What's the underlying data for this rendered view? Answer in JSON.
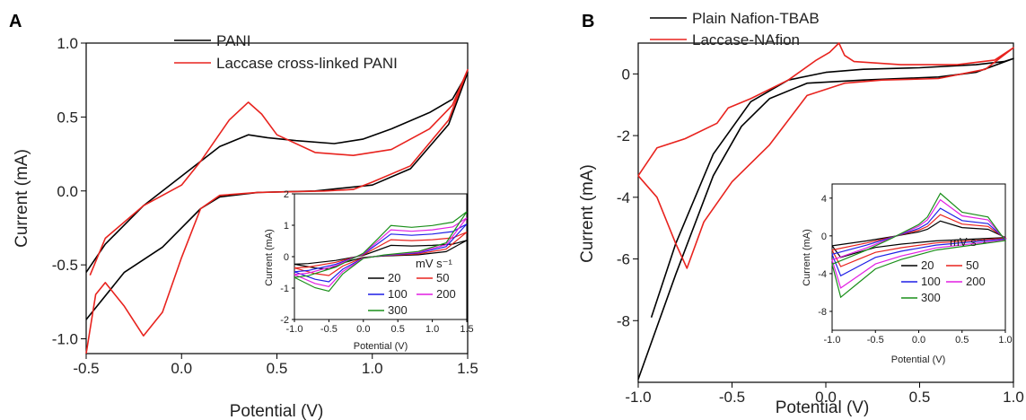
{
  "chart_data": [
    {
      "panel": "A",
      "type": "line",
      "xlabel": "Potential (V)",
      "ylabel": "Current (mA)",
      "xlim": [
        -0.5,
        1.5
      ],
      "ylim": [
        -1.1,
        1.0
      ],
      "x_ticks": [
        "-0.5",
        "0.0",
        "0.5",
        "1.0",
        "1.5"
      ],
      "y_ticks": [
        "1.0",
        "0.5",
        "0.0",
        "-0.5",
        "-1.0"
      ],
      "x_tick_values": [
        -0.5,
        0.0,
        0.5,
        1.0,
        1.5
      ],
      "y_tick_values": [
        1.0,
        0.5,
        0.0,
        -0.5,
        -1.0
      ],
      "legend_position": "top-center",
      "series": [
        {
          "name": "PANI",
          "color": "#000000",
          "points": [
            [
              -0.5,
              -0.87
            ],
            [
              -0.3,
              -0.55
            ],
            [
              -0.1,
              -0.38
            ],
            [
              0.1,
              -0.12
            ],
            [
              0.2,
              -0.04
            ],
            [
              0.4,
              -0.01
            ],
            [
              0.7,
              0.0
            ],
            [
              1.0,
              0.04
            ],
            [
              1.2,
              0.15
            ],
            [
              1.4,
              0.45
            ],
            [
              1.5,
              0.8
            ],
            [
              1.42,
              0.62
            ],
            [
              1.3,
              0.53
            ],
            [
              1.1,
              0.42
            ],
            [
              0.95,
              0.35
            ],
            [
              0.8,
              0.32
            ],
            [
              0.6,
              0.34
            ],
            [
              0.45,
              0.36
            ],
            [
              0.35,
              0.38
            ],
            [
              0.2,
              0.3
            ],
            [
              0.0,
              0.1
            ],
            [
              -0.2,
              -0.1
            ],
            [
              -0.4,
              -0.36
            ],
            [
              -0.5,
              -0.55
            ]
          ]
        },
        {
          "name": "Laccase cross-linked PANI",
          "color": "#e8231e",
          "points": [
            [
              -0.5,
              -1.1
            ],
            [
              -0.45,
              -0.7
            ],
            [
              -0.4,
              -0.62
            ],
            [
              -0.3,
              -0.78
            ],
            [
              -0.2,
              -0.98
            ],
            [
              -0.1,
              -0.82
            ],
            [
              0.0,
              -0.45
            ],
            [
              0.1,
              -0.12
            ],
            [
              0.2,
              -0.03
            ],
            [
              0.4,
              -0.01
            ],
            [
              0.75,
              0.0
            ],
            [
              0.9,
              0.01
            ],
            [
              1.0,
              0.06
            ],
            [
              1.2,
              0.17
            ],
            [
              1.4,
              0.48
            ],
            [
              1.5,
              0.82
            ],
            [
              1.42,
              0.58
            ],
            [
              1.3,
              0.42
            ],
            [
              1.1,
              0.28
            ],
            [
              0.9,
              0.24
            ],
            [
              0.7,
              0.26
            ],
            [
              0.5,
              0.38
            ],
            [
              0.42,
              0.52
            ],
            [
              0.35,
              0.6
            ],
            [
              0.25,
              0.48
            ],
            [
              0.1,
              0.2
            ],
            [
              0.0,
              0.04
            ],
            [
              -0.2,
              -0.1
            ],
            [
              -0.4,
              -0.32
            ],
            [
              -0.48,
              -0.57
            ]
          ]
        }
      ],
      "inset": {
        "xlabel": "Potential (V)",
        "ylabel": "Current (mA)",
        "xlim": [
          -1.0,
          1.5
        ],
        "ylim": [
          -2.0,
          2.0
        ],
        "x_ticks": [
          "-1.0",
          "-0.5",
          "0.0",
          "0.5",
          "1.0",
          "1.5"
        ],
        "y_ticks": [
          "2",
          "1",
          "0",
          "-1",
          "-2"
        ],
        "x_tick_values": [
          -1.0,
          -0.5,
          0.0,
          0.5,
          1.0,
          1.5
        ],
        "y_tick_values": [
          2,
          1,
          0,
          -1,
          -2
        ],
        "legend_title": "mV s⁻¹",
        "series": [
          {
            "name": "20",
            "color": "#000000",
            "scale": 0.4
          },
          {
            "name": "50",
            "color": "#e8231e",
            "scale": 0.6
          },
          {
            "name": "100",
            "color": "#1f1fe6",
            "scale": 0.8
          },
          {
            "name": "200",
            "color": "#e21fe2",
            "scale": 0.95
          },
          {
            "name": "300",
            "color": "#1a8f1a",
            "scale": 1.1
          }
        ]
      }
    },
    {
      "panel": "B",
      "type": "line",
      "xlabel": "Potential (V)",
      "ylabel": "Current (mA)",
      "xlim": [
        -1.0,
        1.0
      ],
      "ylim": [
        -10.0,
        1.0
      ],
      "x_ticks": [
        "-1.0",
        "-0.5",
        "0.0",
        "0.5",
        "1.0"
      ],
      "y_ticks": [
        "0",
        "-2",
        "-4",
        "-6",
        "-8"
      ],
      "x_tick_values": [
        -1.0,
        -0.5,
        0.0,
        0.5,
        1.0
      ],
      "y_tick_values": [
        0,
        -2,
        -4,
        -6,
        -8
      ],
      "legend_position": "top-left",
      "series": [
        {
          "name": "Plain Nafion-TBAB",
          "color": "#000000",
          "points": [
            [
              -1.0,
              -9.9
            ],
            [
              -0.8,
              -6.5
            ],
            [
              -0.6,
              -3.3
            ],
            [
              -0.45,
              -1.7
            ],
            [
              -0.3,
              -0.8
            ],
            [
              -0.1,
              -0.3
            ],
            [
              0.2,
              -0.2
            ],
            [
              0.6,
              -0.1
            ],
            [
              0.8,
              0.05
            ],
            [
              1.0,
              0.5
            ],
            [
              0.95,
              0.4
            ],
            [
              0.8,
              0.3
            ],
            [
              0.5,
              0.2
            ],
            [
              0.2,
              0.15
            ],
            [
              0.0,
              0.05
            ],
            [
              -0.2,
              -0.2
            ],
            [
              -0.4,
              -0.9
            ],
            [
              -0.6,
              -2.6
            ],
            [
              -0.8,
              -5.5
            ],
            [
              -0.93,
              -7.9
            ]
          ]
        },
        {
          "name": "Laccase-NAfion",
          "color": "#e8231e",
          "points": [
            [
              -1.0,
              -3.3
            ],
            [
              -0.9,
              -4.0
            ],
            [
              -0.8,
              -5.5
            ],
            [
              -0.74,
              -6.3
            ],
            [
              -0.65,
              -4.8
            ],
            [
              -0.5,
              -3.5
            ],
            [
              -0.3,
              -2.3
            ],
            [
              -0.1,
              -0.7
            ],
            [
              0.1,
              -0.3
            ],
            [
              0.3,
              -0.2
            ],
            [
              0.6,
              -0.15
            ],
            [
              0.85,
              0.15
            ],
            [
              1.0,
              0.85
            ],
            [
              0.9,
              0.45
            ],
            [
              0.7,
              0.3
            ],
            [
              0.4,
              0.3
            ],
            [
              0.15,
              0.4
            ],
            [
              0.1,
              0.6
            ],
            [
              0.07,
              1.0
            ],
            [
              0.02,
              0.7
            ],
            [
              -0.05,
              0.45
            ],
            [
              -0.2,
              -0.2
            ],
            [
              -0.4,
              -0.8
            ],
            [
              -0.52,
              -1.1
            ],
            [
              -0.58,
              -1.6
            ],
            [
              -0.75,
              -2.1
            ],
            [
              -0.9,
              -2.4
            ],
            [
              -1.0,
              -3.3
            ]
          ]
        }
      ],
      "inset": {
        "xlabel": "Potential (V)",
        "ylabel": "Current (mA)",
        "xlim": [
          -1.0,
          1.0
        ],
        "ylim": [
          -10.0,
          5.5
        ],
        "x_ticks": [
          "-1.0",
          "-0.5",
          "0.0",
          "0.5",
          "1.0"
        ],
        "y_ticks": [
          "4",
          "0",
          "-4",
          "-8"
        ],
        "x_tick_values": [
          -1.0,
          -0.5,
          0.0,
          0.5,
          1.0
        ],
        "y_tick_values": [
          4,
          0,
          -4,
          -8
        ],
        "legend_title": "mV s⁻¹",
        "series": [
          {
            "name": "20",
            "color": "#000000",
            "scale": 0.35
          },
          {
            "name": "50",
            "color": "#e8231e",
            "scale": 0.5
          },
          {
            "name": "100",
            "color": "#1f1fe6",
            "scale": 0.65
          },
          {
            "name": "200",
            "color": "#e21fe2",
            "scale": 0.85
          },
          {
            "name": "300",
            "color": "#1a8f1a",
            "scale": 1.0
          }
        ]
      }
    }
  ]
}
